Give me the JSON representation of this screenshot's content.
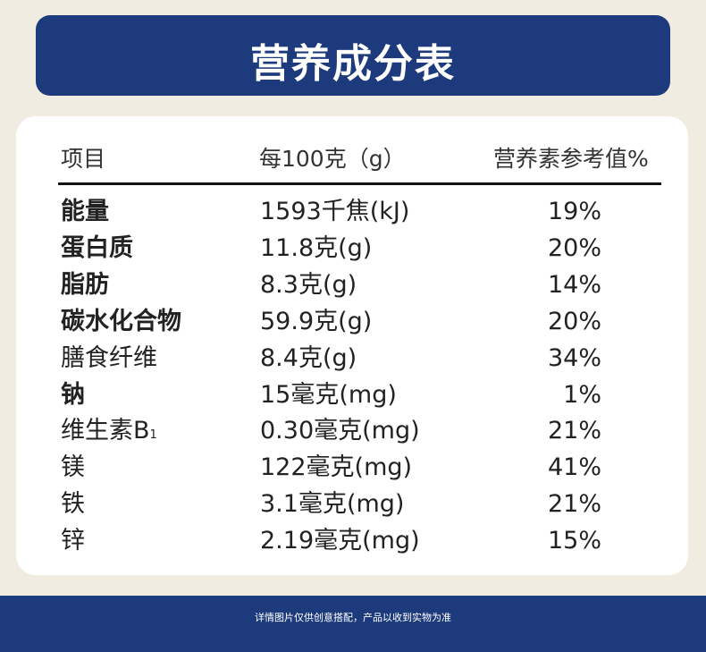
{
  "title": "营养成分表",
  "table": {
    "header": [
      "项目",
      "每100克（g）",
      "营养素参考值%"
    ],
    "rows": [
      {
        "name": "能量",
        "amount": "1593千焦(kJ)",
        "nrv": "19%",
        "bold": true
      },
      {
        "name": "蛋白质",
        "amount": "11.8克(g)",
        "nrv": "20%",
        "bold": true
      },
      {
        "name": "脂肪",
        "amount": "8.3克(g)",
        "nrv": "14%",
        "bold": true
      },
      {
        "name": "碳水化合物",
        "amount": "59.9克(g)",
        "nrv": "20%",
        "bold": true
      },
      {
        "name": "膳食纤维",
        "amount": "8.4克(g)",
        "nrv": "34%",
        "bold": false
      },
      {
        "name": "钠",
        "amount": "15毫克(mg)",
        "nrv": "1%",
        "bold": true
      },
      {
        "name": "维生素B",
        "name_sub": "1",
        "amount": "0.30毫克(mg)",
        "nrv": "21%",
        "bold": false
      },
      {
        "name": "镁",
        "amount": "122毫克(mg)",
        "nrv": "41%",
        "bold": false
      },
      {
        "name": "铁",
        "amount": "3.1毫克(mg)",
        "nrv": "21%",
        "bold": false
      },
      {
        "name": "锌",
        "amount": "2.19毫克(mg)",
        "nrv": "15%",
        "bold": false
      }
    ]
  },
  "footer": "详情图片仅供创意搭配，产品以收到实物为准"
}
